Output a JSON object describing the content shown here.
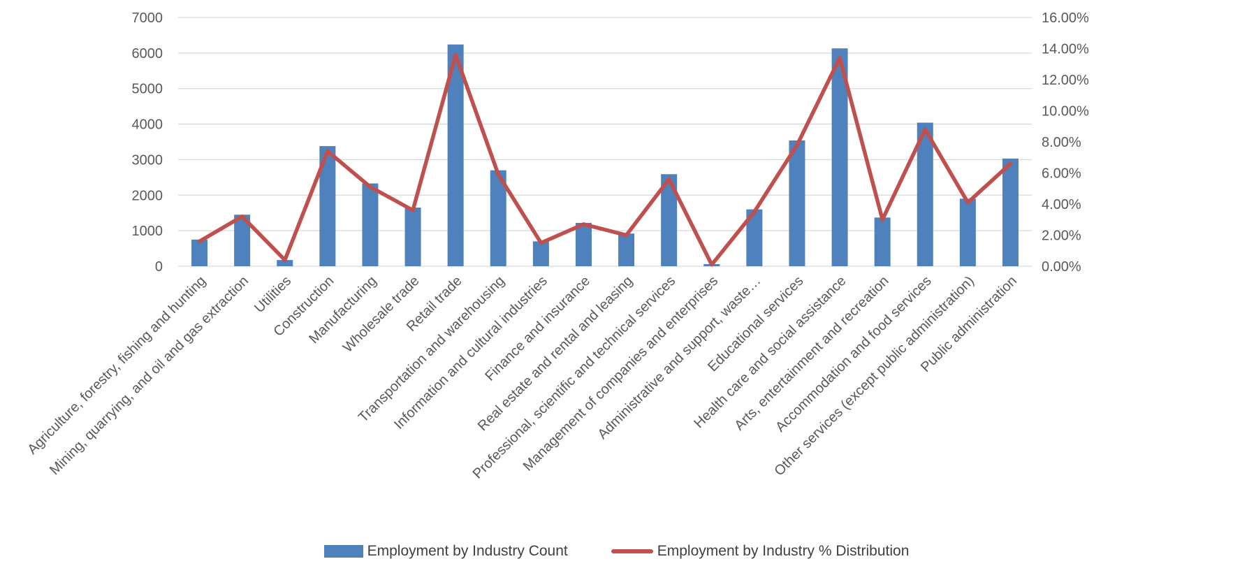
{
  "chart_data": {
    "type": "bar",
    "categories": [
      "Agriculture, forestry, fishing and hunting",
      "Mining, quarrying, and oil and gas extraction",
      "Utilities",
      "Construction",
      "Manufacturing",
      "Wholesale trade",
      "Retail trade",
      "Transportation and warehousing",
      "Information and cultural industries",
      "Finance and insurance",
      "Real estate and rental and leasing",
      "Professional, scientific and technical services",
      "Management of companies and enterprises",
      "Administrative and support, waste…",
      "Educational services",
      "Health care and social assistance",
      "Arts, entertainment and recreation",
      "Accommodation and food services",
      "Other services (except public administration)",
      "Public administration"
    ],
    "series": [
      {
        "name": "Employment by Industry Count",
        "type": "bar",
        "axis": "left",
        "color": "#4f81bd",
        "values": [
          750,
          1450,
          175,
          3380,
          2330,
          1650,
          6240,
          2700,
          700,
          1220,
          920,
          2590,
          60,
          1600,
          3540,
          6130,
          1370,
          4040,
          1900,
          3030
        ]
      },
      {
        "name": "Employment by Industry % Distribution",
        "type": "line",
        "axis": "right",
        "color": "#c0504d",
        "values": [
          1.6,
          3.2,
          0.4,
          7.4,
          5.1,
          3.6,
          13.6,
          5.9,
          1.5,
          2.7,
          2.0,
          5.6,
          0.1,
          3.5,
          7.8,
          13.4,
          3.0,
          8.8,
          4.1,
          6.6
        ]
      }
    ],
    "y_left": {
      "min": 0,
      "max": 7000,
      "step": 1000,
      "ticks": [
        "0",
        "1000",
        "2000",
        "3000",
        "4000",
        "5000",
        "6000",
        "7000"
      ]
    },
    "y_right": {
      "min": 0,
      "max": 16,
      "step": 2,
      "ticks": [
        "0.00%",
        "2.00%",
        "4.00%",
        "6.00%",
        "8.00%",
        "10.00%",
        "12.00%",
        "14.00%",
        "16.00%"
      ]
    },
    "title": "",
    "xlabel": "",
    "ylabel": "",
    "grid": true,
    "legend_position": "bottom"
  }
}
